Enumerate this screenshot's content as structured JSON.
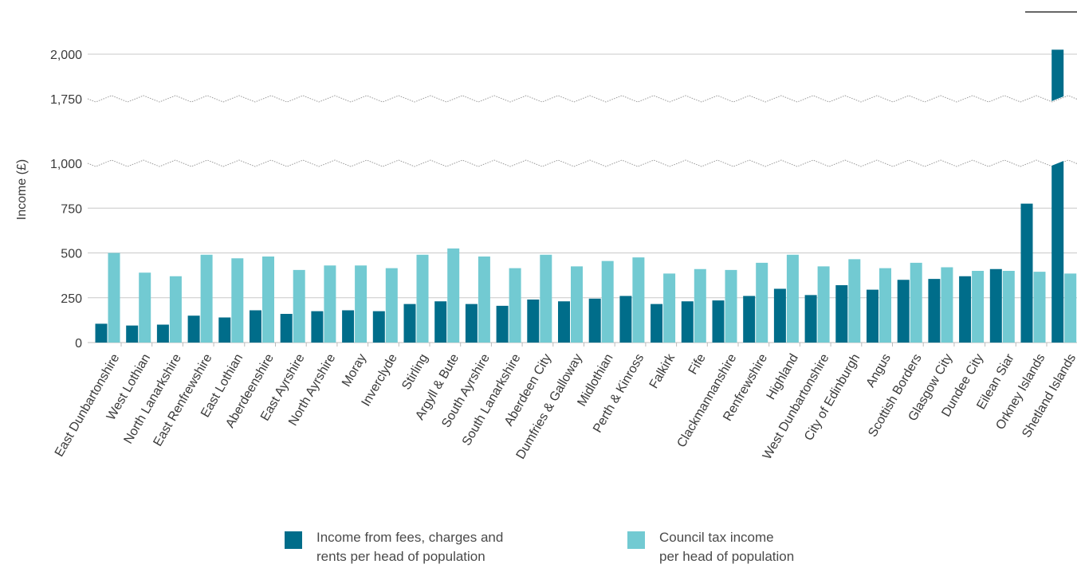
{
  "chart_data": {
    "type": "bar",
    "ylabel": "Income (£)",
    "y_axis_break": {
      "lower_max": 1000,
      "upper_min": 1750
    },
    "yticks": [
      "0",
      "250",
      "500",
      "750",
      "1,000",
      "1,750",
      "2,000"
    ],
    "ytick_values": [
      0,
      250,
      500,
      750,
      1000,
      1750,
      2000
    ],
    "grid": true,
    "legend_position": "bottom",
    "categories": [
      "East Dunbartonshire",
      "West Lothian",
      "North Lanarkshire",
      "East Renfrewshire",
      "East Lothian",
      "Aberdeenshire",
      "East Ayrshire",
      "North Ayrshire",
      "Moray",
      "Inverclyde",
      "Stirling",
      "Argyll & Bute",
      "South Ayrshire",
      "South Lanarkshire",
      "Aberdeen City",
      "Dumfries & Galloway",
      "Midlothian",
      "Perth & Kinross",
      "Falkirk",
      "Fife",
      "Clackmannanshire",
      "Renfrewshire",
      "Highland",
      "West Dunbartonshire",
      "City of Edinburgh",
      "Angus",
      "Scottish Borders",
      "Glasgow City",
      "Dundee City",
      "Eilean Siar",
      "Orkney Islands",
      "Shetland Islands"
    ],
    "series": [
      {
        "name": "Income from fees, charges and rents per head of population",
        "color": "#006d8a",
        "values": [
          105,
          95,
          100,
          150,
          140,
          180,
          160,
          175,
          180,
          175,
          215,
          230,
          215,
          205,
          240,
          230,
          245,
          260,
          215,
          230,
          235,
          260,
          300,
          265,
          320,
          295,
          350,
          355,
          370,
          410,
          775,
          2025
        ]
      },
      {
        "name": "Council tax income per head of population",
        "color": "#72cad2",
        "values": [
          500,
          390,
          370,
          490,
          470,
          480,
          405,
          430,
          430,
          415,
          490,
          525,
          480,
          415,
          490,
          425,
          455,
          475,
          385,
          410,
          405,
          445,
          490,
          425,
          465,
          415,
          445,
          420,
          400,
          400,
          395,
          385
        ]
      }
    ]
  },
  "legend": {
    "items": [
      {
        "label": "Income from fees, charges and\nrents per head of population",
        "color": "#006d8a"
      },
      {
        "label": "Council tax income\nper head of population",
        "color": "#72cad2"
      }
    ]
  }
}
